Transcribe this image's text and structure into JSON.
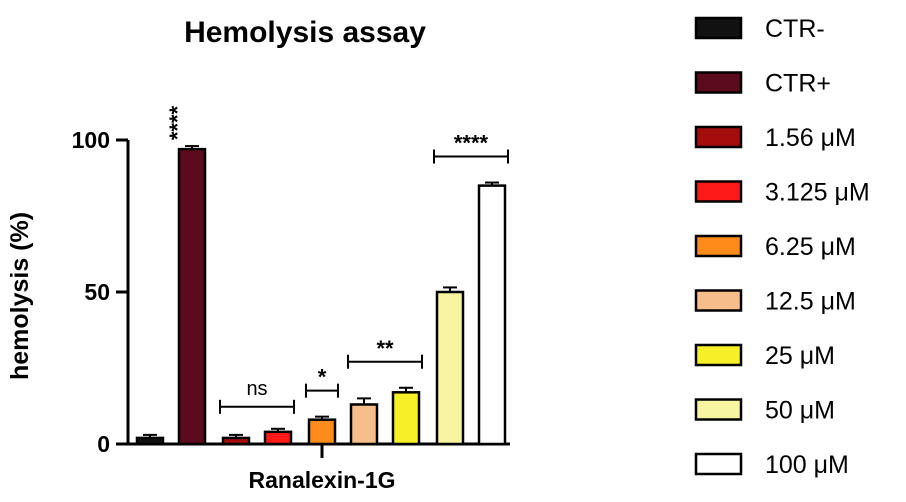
{
  "chart_data": {
    "type": "bar",
    "title": "Hemolysis assay",
    "xlabel": "Ranalexin-1G",
    "ylabel": "hemolysis (%)",
    "ylim": [
      0,
      100
    ],
    "yticks": [
      "0",
      "50",
      "100"
    ],
    "grid": false,
    "legend_position": "right",
    "categories": [
      "CTR-",
      "CTR+",
      "1.56 μM",
      "3.125 μM",
      "6.25 μM",
      "12.5 μM",
      "25 μM",
      "50 μM",
      "100 μM"
    ],
    "values": [
      2,
      97,
      2,
      4,
      8,
      13,
      17,
      50,
      85
    ],
    "errors": [
      1,
      1,
      1,
      1,
      1,
      2,
      1.5,
      1.5,
      1
    ],
    "colors": [
      "#111111",
      "#5c0a1e",
      "#a50d0d",
      "#ff1a1a",
      "#ff8c1a",
      "#f7be8b",
      "#f7ef28",
      "#f7f5a2",
      "#ffffff"
    ],
    "annotations": [
      {
        "text": "****",
        "bar": 1
      },
      {
        "text": "ns",
        "from_bar": 2,
        "to_bar": 3
      },
      {
        "text": "*",
        "from_bar": 4,
        "to_bar": 4
      },
      {
        "text": "**",
        "from_bar": 5,
        "to_bar": 6
      },
      {
        "text": "****",
        "from_bar": 7,
        "to_bar": 8
      }
    ]
  }
}
